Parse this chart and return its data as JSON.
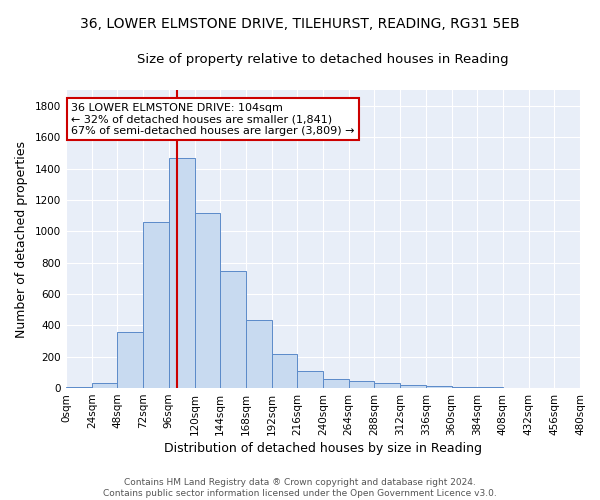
{
  "title_line1": "36, LOWER ELMSTONE DRIVE, TILEHURST, READING, RG31 5EB",
  "title_line2": "Size of property relative to detached houses in Reading",
  "xlabel": "Distribution of detached houses by size in Reading",
  "ylabel": "Number of detached properties",
  "bin_labels": [
    "0sqm",
    "24sqm",
    "48sqm",
    "72sqm",
    "96sqm",
    "120sqm",
    "144sqm",
    "168sqm",
    "192sqm",
    "216sqm",
    "240sqm",
    "264sqm",
    "288sqm",
    "312sqm",
    "336sqm",
    "360sqm",
    "384sqm",
    "408sqm",
    "432sqm",
    "456sqm",
    "480sqm"
  ],
  "bar_heights": [
    10,
    35,
    355,
    1060,
    1470,
    1115,
    745,
    435,
    220,
    110,
    55,
    45,
    30,
    18,
    12,
    8,
    5,
    3,
    2,
    1,
    0
  ],
  "bar_color": "#c8daf0",
  "bar_edge_color": "#5b8ac9",
  "property_size": 104,
  "vline_color": "#cc0000",
  "annotation_line1": "36 LOWER ELMSTONE DRIVE: 104sqm",
  "annotation_line2": "← 32% of detached houses are smaller (1,841)",
  "annotation_line3": "67% of semi-detached houses are larger (3,809) →",
  "annotation_box_color": "white",
  "annotation_box_edge": "#cc0000",
  "ylim": [
    0,
    1900
  ],
  "xlim_start": 0,
  "xlim_end": 480,
  "background_color": "#e8eef8",
  "footnote_line1": "Contains HM Land Registry data ® Crown copyright and database right 2024.",
  "footnote_line2": "Contains public sector information licensed under the Open Government Licence v3.0.",
  "grid_color": "#ffffff",
  "title_fontsize": 10,
  "subtitle_fontsize": 9.5,
  "tick_fontsize": 7.5,
  "label_fontsize": 9,
  "annotation_fontsize": 8,
  "footnote_fontsize": 6.5
}
